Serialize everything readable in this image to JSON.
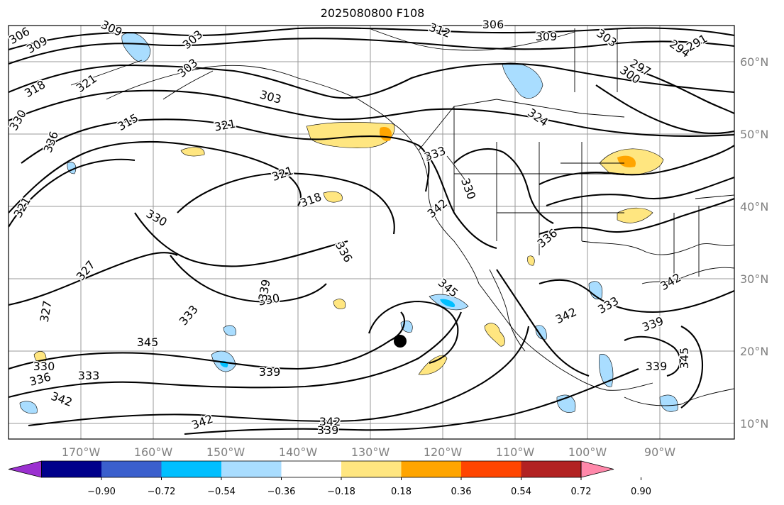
{
  "title": "2025080800 F108",
  "lat_labels": [
    "60°N",
    "50°N",
    "40°N",
    "30°N",
    "20°N",
    "10°N"
  ],
  "lon_labels": [
    "170°W",
    "160°W",
    "150°W",
    "140°W",
    "130°W",
    "120°W",
    "110°W",
    "100°W",
    "90°W"
  ],
  "colorbar": {
    "colors": [
      "#9b30d0",
      "#00008b",
      "#3a5fcd",
      "#00bfff",
      "#a9ddff",
      "#ffffff",
      "#ffe680",
      "#ffa500",
      "#ff4500",
      "#b22222",
      "#ff88aa"
    ],
    "tick_labels": [
      "−0.90",
      "−0.72",
      "−0.54",
      "−0.36",
      "−0.18",
      "0.18",
      "0.36",
      "0.54",
      "0.72",
      "0.90"
    ]
  },
  "contour_labels": [
    "306",
    "309",
    "309",
    "303",
    "312",
    "306",
    "309",
    "303",
    "294",
    "291",
    "297",
    "300",
    "318",
    "321",
    "303",
    "303",
    "315",
    "321",
    "324",
    "336",
    "330",
    "321",
    "318",
    "330",
    "333",
    "330",
    "342",
    "321",
    "336",
    "327",
    "330",
    "339",
    "327",
    "345",
    "342",
    "336",
    "333",
    "345",
    "342",
    "333",
    "330",
    "336",
    "333",
    "342",
    "339",
    "345",
    "339",
    "342",
    "339",
    "339",
    "342"
  ],
  "marker": "storm-center-dot"
}
